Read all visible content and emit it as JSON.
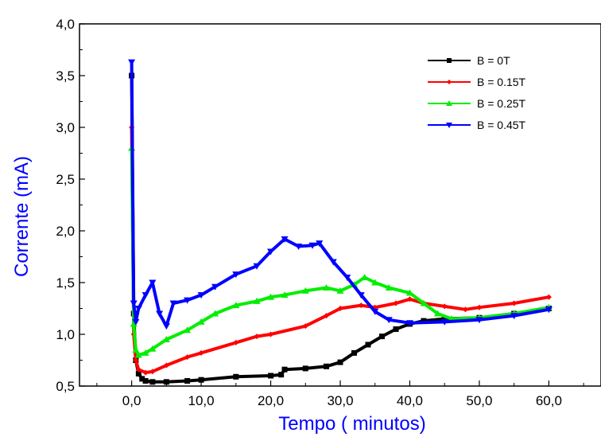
{
  "chart_data": {
    "type": "line",
    "xlabel": "Tempo ( minutos)",
    "ylabel": "Corrente (mA)",
    "xlim": [
      -7.5,
      67.5
    ],
    "ylim": [
      0.5,
      4.0
    ],
    "xticks": [
      0,
      10,
      20,
      30,
      40,
      50,
      60
    ],
    "xtick_labels": [
      "0,0",
      "10,0",
      "20,0",
      "30,0",
      "40,0",
      "50,0",
      "60,0"
    ],
    "yticks": [
      0.5,
      1.0,
      1.5,
      2.0,
      2.5,
      3.0,
      3.5,
      4.0
    ],
    "ytick_labels": [
      "0,5",
      "1,0",
      "1,5",
      "2,0",
      "2,5",
      "3,0",
      "3,5",
      "4,0"
    ],
    "grid": false,
    "legend_position": "top-right",
    "axis_title_color": "#0000ff",
    "series": [
      {
        "name": "B = 0T",
        "color": "#000000",
        "marker": "square",
        "x": [
          0,
          0.3,
          0.6,
          1,
          1.5,
          2,
          3,
          5,
          8,
          10,
          15,
          20,
          21.5,
          22,
          25,
          28,
          30,
          32,
          34,
          36,
          38,
          40,
          42,
          45,
          50,
          55,
          60
        ],
        "y": [
          3.5,
          1.2,
          0.75,
          0.62,
          0.57,
          0.55,
          0.54,
          0.54,
          0.55,
          0.56,
          0.59,
          0.6,
          0.61,
          0.66,
          0.67,
          0.69,
          0.73,
          0.82,
          0.9,
          0.98,
          1.05,
          1.1,
          1.13,
          1.15,
          1.16,
          1.2,
          1.25
        ]
      },
      {
        "name": "B = 0.15T",
        "color": "#ff0000",
        "marker": "diamond",
        "x": [
          0,
          0.3,
          0.6,
          1,
          2,
          3,
          5,
          8,
          10,
          15,
          18,
          20,
          25,
          28,
          30,
          33,
          35,
          38,
          40,
          42,
          45,
          48,
          50,
          55,
          60
        ],
        "y": [
          3.0,
          1.0,
          0.75,
          0.66,
          0.63,
          0.64,
          0.7,
          0.78,
          0.82,
          0.92,
          0.98,
          1.0,
          1.08,
          1.18,
          1.25,
          1.28,
          1.26,
          1.3,
          1.34,
          1.3,
          1.27,
          1.24,
          1.26,
          1.3,
          1.36
        ]
      },
      {
        "name": "B = 0.25T",
        "color": "#00ee00",
        "marker": "triangle-up",
        "x": [
          0,
          0.3,
          0.6,
          1,
          2,
          3,
          5,
          8,
          10,
          12,
          15,
          18,
          20,
          22,
          25,
          28,
          30,
          32,
          33.5,
          35,
          37,
          40,
          42,
          44,
          46,
          50,
          55,
          60
        ],
        "y": [
          2.8,
          1.1,
          0.85,
          0.8,
          0.82,
          0.86,
          0.95,
          1.04,
          1.12,
          1.2,
          1.28,
          1.32,
          1.36,
          1.38,
          1.42,
          1.45,
          1.42,
          1.48,
          1.55,
          1.5,
          1.45,
          1.4,
          1.3,
          1.2,
          1.15,
          1.16,
          1.2,
          1.26
        ]
      },
      {
        "name": "B = 0.45T",
        "color": "#0000ff",
        "marker": "triangle-down",
        "x": [
          0,
          0.3,
          0.6,
          1,
          2,
          3,
          4,
          5,
          6,
          8,
          10,
          12,
          15,
          18,
          20,
          22,
          24,
          26,
          27,
          29,
          31,
          33,
          35,
          37,
          40,
          45,
          50,
          55,
          60
        ],
        "y": [
          3.63,
          1.3,
          1.12,
          1.25,
          1.38,
          1.5,
          1.2,
          1.08,
          1.3,
          1.33,
          1.38,
          1.46,
          1.58,
          1.66,
          1.8,
          1.92,
          1.85,
          1.86,
          1.88,
          1.7,
          1.55,
          1.38,
          1.22,
          1.14,
          1.11,
          1.12,
          1.14,
          1.18,
          1.24
        ]
      }
    ]
  }
}
